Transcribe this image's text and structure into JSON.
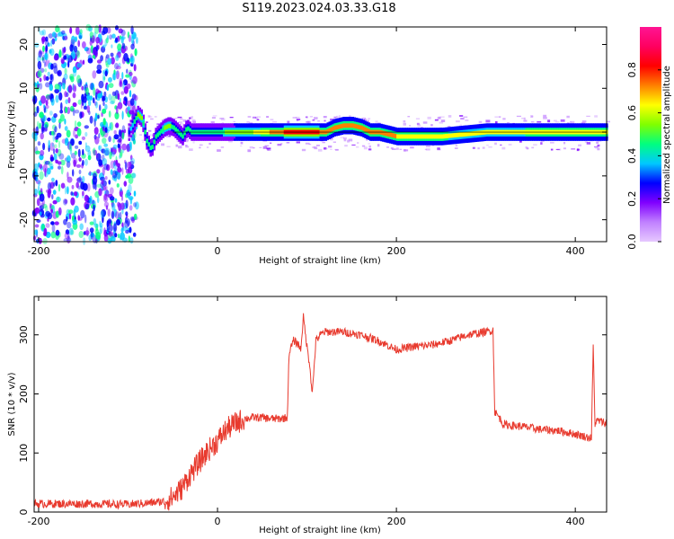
{
  "chart_data": [
    {
      "type": "heatmap",
      "title": "S119.2023.024.03.33.G18",
      "xlabel": "Height of straight line (km)",
      "ylabel": "Frequency (Hz)",
      "xlim": [
        -205,
        435
      ],
      "ylim": [
        -25,
        24
      ],
      "xticks": [
        -200,
        0,
        200,
        400
      ],
      "yticks": [
        -20,
        -10,
        0,
        10,
        20
      ],
      "colorbar": {
        "label": "Normalized spectral amplitude",
        "range": [
          0,
          1
        ],
        "ticks": [
          0.0,
          0.2,
          0.4,
          0.6,
          0.8
        ],
        "colors": [
          "#e6c8ff",
          "#c080ff",
          "#8000ff",
          "#0000ff",
          "#00c8ff",
          "#00ff80",
          "#80ff00",
          "#ffff00",
          "#ff8000",
          "#ff0000",
          "#ff0060",
          "#ff1493"
        ]
      },
      "ridge": {
        "x": [
          -100,
          -95,
          -90,
          -85,
          -80,
          -75,
          -70,
          -60,
          -55,
          -50,
          -45,
          -40,
          -35,
          -30,
          -20,
          0,
          20,
          40,
          80,
          120,
          130,
          140,
          150,
          160,
          170,
          180,
          200,
          250,
          300,
          350,
          400,
          435
        ],
        "frequency": [
          0,
          2,
          4,
          3,
          -2,
          -4,
          -1,
          1,
          1.5,
          1,
          0,
          -1,
          1,
          0,
          0,
          0,
          0,
          0,
          0,
          0,
          1,
          1.5,
          1.5,
          1,
          0,
          0,
          -1,
          -1,
          0,
          0,
          0,
          0
        ],
        "amplitude": [
          0.3,
          0.5,
          0.6,
          0.6,
          0.5,
          0.5,
          0.5,
          0.6,
          0.6,
          0.55,
          0.55,
          0.5,
          0.55,
          0.55,
          0.55,
          0.55,
          0.65,
          0.7,
          0.95,
          0.9,
          0.85,
          0.85,
          0.9,
          0.9,
          0.9,
          0.85,
          0.8,
          0.75,
          0.7,
          0.75,
          0.8,
          0.8
        ]
      }
    },
    {
      "type": "line",
      "xlabel": "Height of straight line (km)",
      "ylabel": "SNR (10 * v/v)",
      "xlim": [
        -205,
        435
      ],
      "ylim": [
        0,
        365
      ],
      "xticks": [
        -200,
        0,
        200,
        400
      ],
      "yticks": [
        0,
        100,
        200,
        300
      ],
      "color": "#e83a2e",
      "series": [
        {
          "x": [
            -205,
            -150,
            -100,
            -80,
            -60,
            -50,
            -40,
            -30,
            -20,
            -10,
            0,
            10,
            20,
            30,
            40,
            50,
            60,
            70,
            78,
            80,
            85,
            90,
            93,
            96,
            100,
            103,
            106,
            110,
            115,
            120,
            140,
            160,
            180,
            200,
            220,
            240,
            260,
            280,
            300,
            308,
            310,
            315,
            320,
            340,
            360,
            380,
            400,
            418,
            420,
            422,
            425,
            435
          ],
          "y": [
            14,
            14,
            13,
            15,
            18,
            25,
            40,
            65,
            85,
            105,
            120,
            140,
            150,
            158,
            160,
            160,
            158,
            158,
            160,
            270,
            290,
            285,
            275,
            330,
            280,
            250,
            200,
            290,
            300,
            305,
            305,
            300,
            290,
            275,
            280,
            283,
            290,
            300,
            305,
            308,
            170,
            160,
            148,
            145,
            140,
            138,
            132,
            125,
            280,
            150,
            155,
            150
          ]
        }
      ]
    }
  ]
}
